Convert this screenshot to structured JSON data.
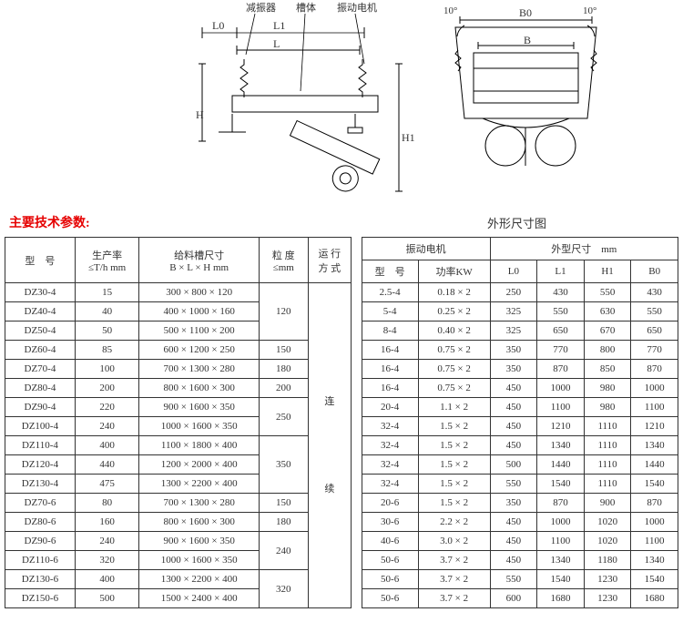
{
  "diagram": {
    "labels": {
      "damper": "减振器",
      "body": "槽体",
      "motor": "振动电机",
      "angle_left": "10°",
      "angle_right": "10°",
      "L0": "L0",
      "L1": "L1",
      "L": "L",
      "H": "H",
      "H1": "H1",
      "B0": "B0",
      "B": "B"
    },
    "caption": "外形尺寸图"
  },
  "titles": {
    "main": "主要技术参数:"
  },
  "headers": {
    "model": "型　号",
    "capacity": "生产率\n≤T/h mm",
    "feed_size": "给料槽尺寸\nB × L × H mm",
    "particle": "粒 度\n≤mm",
    "mode": "运 行\n方 式",
    "vib_motor": "振动电机",
    "vib_model": "型　号",
    "vib_power": "功率KW",
    "dim": "外型尺寸　mm",
    "L0": "L0",
    "L1": "L1",
    "H1": "H1",
    "B0": "B0"
  },
  "mode_value": "连\n\n\n\n续",
  "particle_groups": [
    {
      "value": "120",
      "span": 3
    },
    {
      "value": "150",
      "span": 1
    },
    {
      "value": "180",
      "span": 1
    },
    {
      "value": "200",
      "span": 1
    },
    {
      "value": "250",
      "span": 2
    },
    {
      "value": "350",
      "span": 3
    },
    {
      "value": "150",
      "span": 1
    },
    {
      "value": "180",
      "span": 1
    },
    {
      "value": "240",
      "span": 2
    },
    {
      "value": "320",
      "span": 2
    }
  ],
  "rows": [
    {
      "model": "DZ30-4",
      "cap": "15",
      "feed": "300 × 800 × 120",
      "vm": "2.5-4",
      "pw": "0.18 × 2",
      "l0": "250",
      "l1": "430",
      "h1": "550",
      "b0": "430"
    },
    {
      "model": "DZ40-4",
      "cap": "40",
      "feed": "400 × 1000 × 160",
      "vm": "5-4",
      "pw": "0.25 × 2",
      "l0": "325",
      "l1": "550",
      "h1": "630",
      "b0": "550"
    },
    {
      "model": "DZ50-4",
      "cap": "50",
      "feed": "500 × 1100 × 200",
      "vm": "8-4",
      "pw": "0.40 × 2",
      "l0": "325",
      "l1": "650",
      "h1": "670",
      "b0": "650"
    },
    {
      "model": "DZ60-4",
      "cap": "85",
      "feed": "600 × 1200 × 250",
      "vm": "16-4",
      "pw": "0.75 × 2",
      "l0": "350",
      "l1": "770",
      "h1": "800",
      "b0": "770"
    },
    {
      "model": "DZ70-4",
      "cap": "100",
      "feed": "700 × 1300 × 280",
      "vm": "16-4",
      "pw": "0.75 × 2",
      "l0": "350",
      "l1": "870",
      "h1": "850",
      "b0": "870"
    },
    {
      "model": "DZ80-4",
      "cap": "200",
      "feed": "800 × 1600 × 300",
      "vm": "16-4",
      "pw": "0.75 × 2",
      "l0": "450",
      "l1": "1000",
      "h1": "980",
      "b0": "1000"
    },
    {
      "model": "DZ90-4",
      "cap": "220",
      "feed": "900 × 1600 × 350",
      "vm": "20-4",
      "pw": "1.1 × 2",
      "l0": "450",
      "l1": "1100",
      "h1": "980",
      "b0": "1100"
    },
    {
      "model": "DZ100-4",
      "cap": "240",
      "feed": "1000 × 1600 × 350",
      "vm": "32-4",
      "pw": "1.5 × 2",
      "l0": "450",
      "l1": "1210",
      "h1": "1110",
      "b0": "1210"
    },
    {
      "model": "DZ110-4",
      "cap": "400",
      "feed": "1100 × 1800 × 400",
      "vm": "32-4",
      "pw": "1.5 × 2",
      "l0": "450",
      "l1": "1340",
      "h1": "1110",
      "b0": "1340"
    },
    {
      "model": "DZ120-4",
      "cap": "440",
      "feed": "1200 × 2000 × 400",
      "vm": "32-4",
      "pw": "1.5 × 2",
      "l0": "500",
      "l1": "1440",
      "h1": "1110",
      "b0": "1440"
    },
    {
      "model": "DZ130-4",
      "cap": "475",
      "feed": "1300 × 2200 × 400",
      "vm": "32-4",
      "pw": "1.5 × 2",
      "l0": "550",
      "l1": "1540",
      "h1": "1110",
      "b0": "1540"
    },
    {
      "model": "DZ70-6",
      "cap": "80",
      "feed": "700 × 1300 × 280",
      "vm": "20-6",
      "pw": "1.5 × 2",
      "l0": "350",
      "l1": "870",
      "h1": "900",
      "b0": "870"
    },
    {
      "model": "DZ80-6",
      "cap": "160",
      "feed": "800 × 1600 × 300",
      "vm": "30-6",
      "pw": "2.2 × 2",
      "l0": "450",
      "l1": "1000",
      "h1": "1020",
      "b0": "1000"
    },
    {
      "model": "DZ90-6",
      "cap": "240",
      "feed": "900 × 1600 × 350",
      "vm": "40-6",
      "pw": "3.0 × 2",
      "l0": "450",
      "l1": "1100",
      "h1": "1020",
      "b0": "1100"
    },
    {
      "model": "DZ110-6",
      "cap": "320",
      "feed": "1000 × 1600 × 350",
      "vm": "50-6",
      "pw": "3.7 × 2",
      "l0": "450",
      "l1": "1340",
      "h1": "1180",
      "b0": "1340"
    },
    {
      "model": "DZ130-6",
      "cap": "400",
      "feed": "1300 × 2200 × 400",
      "vm": "50-6",
      "pw": "3.7 × 2",
      "l0": "550",
      "l1": "1540",
      "h1": "1230",
      "b0": "1540"
    },
    {
      "model": "DZ150-6",
      "cap": "500",
      "feed": "1500 × 2400 × 400",
      "vm": "50-6",
      "pw": "3.7 × 2",
      "l0": "600",
      "l1": "1680",
      "h1": "1230",
      "b0": "1680"
    }
  ]
}
